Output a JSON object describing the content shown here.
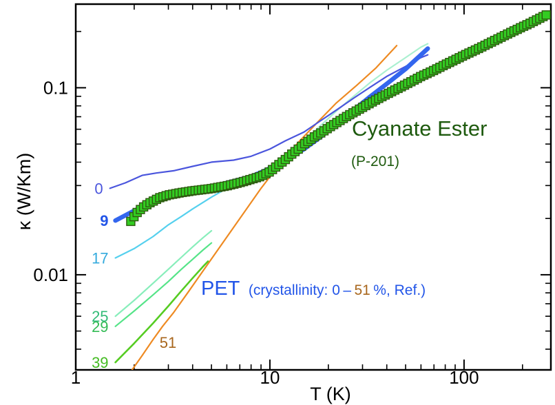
{
  "chart_data": {
    "type": "line",
    "xlabel": "T  (K)",
    "ylabel": "κ  (W/Km)",
    "xscale": "log",
    "yscale": "log",
    "xlim": [
      1,
      280
    ],
    "ylim": [
      0.0031,
      0.28
    ],
    "x_ticks": [
      {
        "value": 1,
        "label": "1"
      },
      {
        "value": 10,
        "label": "10"
      },
      {
        "value": 100,
        "label": "100"
      }
    ],
    "y_ticks": [
      {
        "value": 0.01,
        "label": "0.01"
      },
      {
        "value": 0.1,
        "label": "0.1"
      }
    ],
    "grid": false,
    "annotations": {
      "cyanate_title": "Cyanate Ester",
      "cyanate_sub": "(P-201)",
      "pet_main": "PET",
      "pet_paren_a": "(crystallinity: 0",
      "pet_paren_b": "–",
      "pet_paren_c": "51",
      "pet_paren_d": "%, Ref.)"
    },
    "colors": {
      "cyanate_fill": "#33cc22",
      "cyanate_edge": "#2e5a10",
      "cyanate_text": "#1e5a0e",
      "pet_text": "#2255e8",
      "orange_text": "#a8661c"
    },
    "series": [
      {
        "name": "0",
        "color": "#4a55dd",
        "width": 2.2,
        "label_color": "#4a55dd",
        "x": [
          1.5,
          1.8,
          2.2,
          2.6,
          3.2,
          4,
          5,
          6.5,
          8,
          10,
          12,
          15,
          18,
          22,
          27,
          33,
          40,
          50,
          60,
          65
        ],
        "y": [
          0.029,
          0.031,
          0.034,
          0.035,
          0.036,
          0.038,
          0.04,
          0.041,
          0.043,
          0.047,
          0.052,
          0.058,
          0.066,
          0.076,
          0.088,
          0.101,
          0.115,
          0.13,
          0.145,
          0.15
        ]
      },
      {
        "name": "9",
        "color": "#3366ee",
        "width": 6.5,
        "label_color": "#2255e8",
        "bold": true,
        "x": [
          1.6,
          2,
          2.5,
          3,
          4,
          5,
          6,
          8,
          10,
          12,
          15,
          18,
          22,
          27,
          33,
          40,
          50,
          65
        ],
        "y": [
          0.0195,
          0.022,
          0.0245,
          0.026,
          0.028,
          0.0295,
          0.031,
          0.0335,
          0.037,
          0.041,
          0.047,
          0.054,
          0.064,
          0.076,
          0.09,
          0.105,
          0.126,
          0.162
        ]
      },
      {
        "name": "17",
        "color": "#55d0ee",
        "width": 2.2,
        "label_color": "#33aadd",
        "x": [
          1.6,
          2,
          2.5,
          3,
          3.5,
          4,
          5,
          6,
          7,
          8,
          10,
          12,
          14
        ],
        "y": [
          0.0123,
          0.0138,
          0.016,
          0.0185,
          0.0205,
          0.0225,
          0.026,
          0.029,
          0.0315,
          0.0335,
          0.038,
          0.042,
          0.046
        ]
      },
      {
        "name": "25",
        "color": "#88eebb",
        "width": 2.2,
        "label_color": "#33bb77",
        "x": [
          1.6,
          2,
          2.5,
          3,
          3.5,
          4,
          4.5,
          5
        ],
        "y": [
          0.006,
          0.0073,
          0.009,
          0.0107,
          0.0124,
          0.0141,
          0.0157,
          0.0172
        ]
      },
      {
        "name": "29",
        "color": "#55e488",
        "width": 2.2,
        "label_color": "#33bb55",
        "x": [
          1.6,
          2,
          2.5,
          3,
          3.5,
          4,
          4.5,
          5
        ],
        "y": [
          0.0053,
          0.0064,
          0.0078,
          0.0092,
          0.0107,
          0.0121,
          0.0135,
          0.0148
        ]
      },
      {
        "name": "39",
        "color": "#55cc22",
        "width": 2.6,
        "label_color": "#44bb22",
        "x": [
          1.6,
          2,
          2.5,
          3,
          3.5,
          4,
          4.5,
          4.8
        ],
        "y": [
          0.0034,
          0.0043,
          0.0055,
          0.0068,
          0.0082,
          0.0096,
          0.011,
          0.0118
        ]
      },
      {
        "name": "51",
        "color": "#ee8a22",
        "width": 2.2,
        "label_color": "#a8661c",
        "x": [
          1.95,
          2.2,
          2.5,
          2.8,
          3.2,
          3.8,
          4.5,
          5.5,
          7,
          9,
          11,
          14,
          18,
          22,
          28,
          35,
          45
        ],
        "y": [
          0.0031,
          0.0037,
          0.0045,
          0.0053,
          0.0063,
          0.0081,
          0.0104,
          0.014,
          0.02,
          0.029,
          0.038,
          0.051,
          0.067,
          0.083,
          0.103,
          0.127,
          0.168
        ]
      },
      {
        "name": "",
        "color": "#aaf0d0",
        "width": 2.2,
        "label_color": "#aaf0d0",
        "x": [
          10,
          12,
          15,
          18,
          22,
          27,
          33,
          40,
          50,
          60,
          65
        ],
        "y": [
          0.037,
          0.043,
          0.052,
          0.062,
          0.075,
          0.09,
          0.107,
          0.124,
          0.145,
          0.165,
          0.172
        ]
      }
    ],
    "cyanate_ester": {
      "name": "Cyanate Ester",
      "x_start": 1.92,
      "x_end": 265,
      "points": 130,
      "x": [
        1.92,
        2.05,
        2.2,
        2.4,
        2.7,
        3,
        3.5,
        4,
        5,
        6,
        7,
        8,
        9,
        10,
        11,
        12,
        13,
        14,
        15,
        16,
        17,
        18,
        20,
        22,
        25,
        30,
        35,
        40,
        50,
        60,
        70,
        80,
        100,
        120,
        150,
        180,
        220,
        265
      ],
      "y": [
        0.0193,
        0.0213,
        0.0228,
        0.0242,
        0.0258,
        0.0267,
        0.0275,
        0.0281,
        0.0289,
        0.0299,
        0.0311,
        0.0324,
        0.0336,
        0.0356,
        0.0385,
        0.0413,
        0.0443,
        0.047,
        0.05,
        0.0523,
        0.0548,
        0.0567,
        0.061,
        0.0649,
        0.0705,
        0.0785,
        0.0859,
        0.0924,
        0.104,
        0.115,
        0.124,
        0.133,
        0.149,
        0.163,
        0.183,
        0.201,
        0.222,
        0.245
      ]
    }
  }
}
